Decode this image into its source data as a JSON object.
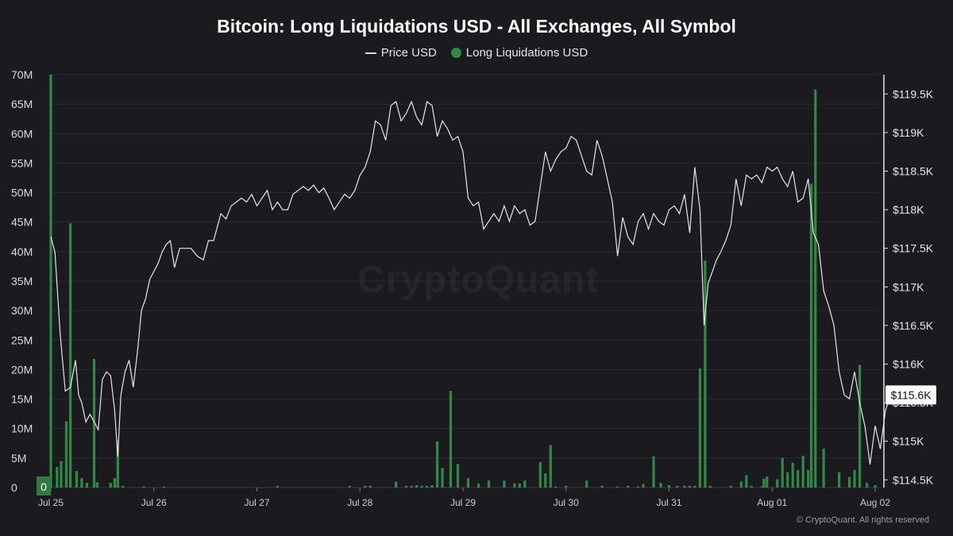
{
  "title": "Bitcoin: Long Liquidations USD - All Exchanges, All Symbol",
  "legend": {
    "price": "Price USD",
    "liquidations": "Long Liquidations USD"
  },
  "watermark": "CryptoQuant",
  "copyright": "© CryptoQuant. All rights reserved",
  "current_price_label": "$115.6K",
  "colors": {
    "background": "#1b1a1f",
    "bars": "#2e8b45",
    "price_line": "#e6e6e6",
    "grid": "#2c2b31"
  },
  "chart_data": {
    "type": "bar",
    "x_ticks": [
      "Jul 25",
      "Jul 26",
      "Jul 27",
      "Jul 28",
      "Jul 29",
      "Jul 30",
      "Jul 31",
      "Aug 01",
      "Aug 02"
    ],
    "left_axis": {
      "ticks": [
        "0",
        "5M",
        "10M",
        "15M",
        "20M",
        "25M",
        "30M",
        "35M",
        "40M",
        "45M",
        "50M",
        "55M",
        "60M",
        "65M",
        "70M"
      ],
      "ylim": [
        0,
        70
      ]
    },
    "right_axis": {
      "ticks": [
        "$114.5K",
        "$115K",
        "$115.5K",
        "$116K",
        "$116.5K",
        "$117K",
        "$117.5K",
        "$118K",
        "$118.5K",
        "$119K",
        "$119.5K"
      ],
      "ylim": [
        114.4,
        119.75
      ]
    },
    "series": [
      {
        "name": "Long Liquidations USD",
        "kind": "bar",
        "unit": "M USD",
        "points": [
          [
            0.0,
            70
          ],
          [
            0.06,
            3.5
          ],
          [
            0.1,
            4.5
          ],
          [
            0.15,
            11.2
          ],
          [
            0.19,
            44.8
          ],
          [
            0.25,
            2.8
          ],
          [
            0.3,
            1.6
          ],
          [
            0.35,
            0.8
          ],
          [
            0.42,
            21.8
          ],
          [
            0.45,
            0.9
          ],
          [
            0.58,
            0.8
          ],
          [
            0.62,
            1.6
          ],
          [
            0.65,
            8.0
          ],
          [
            0.7,
            0.3
          ],
          [
            0.9,
            0.2
          ],
          [
            1.1,
            0.2
          ],
          [
            2.2,
            0.3
          ],
          [
            2.9,
            0.3
          ],
          [
            3.05,
            0.3
          ],
          [
            3.1,
            0.3
          ],
          [
            3.35,
            1.0
          ],
          [
            3.45,
            0.3
          ],
          [
            3.5,
            0.3
          ],
          [
            3.55,
            0.4
          ],
          [
            3.6,
            0.3
          ],
          [
            3.65,
            0.3
          ],
          [
            3.7,
            0.4
          ],
          [
            3.75,
            7.8
          ],
          [
            3.8,
            3.3
          ],
          [
            3.88,
            16.4
          ],
          [
            3.95,
            4.0
          ],
          [
            4.05,
            1.6
          ],
          [
            4.15,
            0.7
          ],
          [
            4.25,
            1.2
          ],
          [
            4.4,
            1.2
          ],
          [
            4.5,
            0.7
          ],
          [
            4.55,
            0.7
          ],
          [
            4.6,
            1.2
          ],
          [
            4.75,
            4.3
          ],
          [
            4.8,
            2.4
          ],
          [
            4.85,
            7.2
          ],
          [
            4.9,
            0.2
          ],
          [
            5.0,
            0.3
          ],
          [
            5.2,
            1.2
          ],
          [
            5.35,
            0.3
          ],
          [
            5.5,
            0.2
          ],
          [
            5.6,
            0.3
          ],
          [
            5.7,
            0.2
          ],
          [
            5.75,
            0.6
          ],
          [
            5.85,
            5.3
          ],
          [
            5.92,
            0.8
          ],
          [
            6.0,
            0.4
          ],
          [
            6.08,
            0.3
          ],
          [
            6.15,
            0.3
          ],
          [
            6.2,
            0.3
          ],
          [
            6.25,
            0.3
          ],
          [
            6.3,
            20.2
          ],
          [
            6.35,
            38.5
          ],
          [
            6.4,
            0.3
          ],
          [
            6.6,
            0.3
          ],
          [
            6.7,
            1.0
          ],
          [
            6.75,
            2.1
          ],
          [
            6.8,
            0.3
          ],
          [
            6.9,
            0.2
          ],
          [
            6.92,
            1.5
          ],
          [
            6.95,
            1.9
          ],
          [
            7.05,
            1.4
          ],
          [
            7.1,
            5.0
          ],
          [
            7.15,
            2.6
          ],
          [
            7.2,
            4.2
          ],
          [
            7.25,
            3.0
          ],
          [
            7.3,
            5.4
          ],
          [
            7.35,
            3.0
          ],
          [
            7.38,
            51.5
          ],
          [
            7.42,
            67.5
          ],
          [
            7.5,
            6.6
          ],
          [
            7.65,
            2.6
          ],
          [
            7.75,
            1.8
          ],
          [
            7.8,
            3.0
          ],
          [
            7.85,
            20.8
          ],
          [
            7.92,
            0.8
          ],
          [
            8.0,
            0.4
          ]
        ]
      },
      {
        "name": "Price USD",
        "kind": "line",
        "unit": "K USD",
        "points": [
          [
            0.0,
            117.65
          ],
          [
            0.04,
            117.45
          ],
          [
            0.09,
            116.4
          ],
          [
            0.14,
            115.65
          ],
          [
            0.19,
            115.7
          ],
          [
            0.24,
            116.05
          ],
          [
            0.27,
            115.6
          ],
          [
            0.3,
            115.5
          ],
          [
            0.34,
            115.25
          ],
          [
            0.38,
            115.35
          ],
          [
            0.42,
            115.25
          ],
          [
            0.46,
            115.15
          ],
          [
            0.5,
            115.8
          ],
          [
            0.54,
            115.9
          ],
          [
            0.58,
            115.85
          ],
          [
            0.62,
            115.4
          ],
          [
            0.65,
            114.8
          ],
          [
            0.68,
            115.6
          ],
          [
            0.72,
            115.9
          ],
          [
            0.76,
            116.05
          ],
          [
            0.8,
            115.7
          ],
          [
            0.84,
            116.15
          ],
          [
            0.88,
            116.7
          ],
          [
            0.92,
            116.85
          ],
          [
            0.96,
            117.1
          ],
          [
            1.0,
            117.2
          ],
          [
            1.04,
            117.3
          ],
          [
            1.08,
            117.45
          ],
          [
            1.12,
            117.55
          ],
          [
            1.16,
            117.6
          ],
          [
            1.2,
            117.25
          ],
          [
            1.25,
            117.5
          ],
          [
            1.3,
            117.5
          ],
          [
            1.36,
            117.5
          ],
          [
            1.42,
            117.4
          ],
          [
            1.48,
            117.35
          ],
          [
            1.53,
            117.6
          ],
          [
            1.58,
            117.6
          ],
          [
            1.65,
            117.95
          ],
          [
            1.7,
            117.88
          ],
          [
            1.75,
            118.05
          ],
          [
            1.8,
            118.1
          ],
          [
            1.85,
            118.15
          ],
          [
            1.9,
            118.1
          ],
          [
            1.95,
            118.2
          ],
          [
            2.0,
            118.05
          ],
          [
            2.05,
            118.15
          ],
          [
            2.1,
            118.25
          ],
          [
            2.15,
            118.0
          ],
          [
            2.2,
            118.1
          ],
          [
            2.25,
            118.0
          ],
          [
            2.3,
            118.0
          ],
          [
            2.35,
            118.2
          ],
          [
            2.4,
            118.25
          ],
          [
            2.45,
            118.3
          ],
          [
            2.5,
            118.25
          ],
          [
            2.55,
            118.32
          ],
          [
            2.6,
            118.22
          ],
          [
            2.65,
            118.28
          ],
          [
            2.7,
            118.15
          ],
          [
            2.75,
            118.0
          ],
          [
            2.8,
            118.1
          ],
          [
            2.85,
            118.2
          ],
          [
            2.9,
            118.15
          ],
          [
            2.95,
            118.25
          ],
          [
            3.0,
            118.45
          ],
          [
            3.05,
            118.55
          ],
          [
            3.1,
            118.75
          ],
          [
            3.15,
            119.15
          ],
          [
            3.2,
            119.1
          ],
          [
            3.25,
            118.9
          ],
          [
            3.3,
            119.35
          ],
          [
            3.35,
            119.4
          ],
          [
            3.4,
            119.15
          ],
          [
            3.45,
            119.25
          ],
          [
            3.5,
            119.4
          ],
          [
            3.55,
            119.2
          ],
          [
            3.6,
            119.1
          ],
          [
            3.65,
            119.4
          ],
          [
            3.7,
            119.35
          ],
          [
            3.75,
            118.95
          ],
          [
            3.8,
            119.15
          ],
          [
            3.85,
            119.05
          ],
          [
            3.9,
            118.9
          ],
          [
            3.95,
            118.95
          ],
          [
            4.0,
            118.75
          ],
          [
            4.05,
            118.15
          ],
          [
            4.1,
            118.05
          ],
          [
            4.15,
            118.1
          ],
          [
            4.2,
            117.75
          ],
          [
            4.25,
            117.85
          ],
          [
            4.3,
            117.95
          ],
          [
            4.35,
            117.85
          ],
          [
            4.4,
            118.05
          ],
          [
            4.45,
            117.85
          ],
          [
            4.5,
            118.05
          ],
          [
            4.55,
            117.95
          ],
          [
            4.6,
            118.0
          ],
          [
            4.65,
            117.8
          ],
          [
            4.7,
            117.85
          ],
          [
            4.75,
            118.3
          ],
          [
            4.8,
            118.75
          ],
          [
            4.85,
            118.5
          ],
          [
            4.9,
            118.65
          ],
          [
            4.95,
            118.75
          ],
          [
            5.0,
            118.8
          ],
          [
            5.05,
            118.95
          ],
          [
            5.1,
            118.9
          ],
          [
            5.15,
            118.7
          ],
          [
            5.2,
            118.5
          ],
          [
            5.25,
            118.45
          ],
          [
            5.3,
            118.9
          ],
          [
            5.35,
            118.7
          ],
          [
            5.4,
            118.4
          ],
          [
            5.45,
            118.1
          ],
          [
            5.5,
            117.4
          ],
          [
            5.55,
            117.9
          ],
          [
            5.6,
            117.65
          ],
          [
            5.65,
            117.55
          ],
          [
            5.7,
            117.85
          ],
          [
            5.75,
            117.95
          ],
          [
            5.8,
            117.75
          ],
          [
            5.85,
            117.95
          ],
          [
            5.9,
            117.85
          ],
          [
            5.95,
            117.8
          ],
          [
            6.0,
            118.0
          ],
          [
            6.05,
            118.05
          ],
          [
            6.1,
            117.95
          ],
          [
            6.15,
            118.2
          ],
          [
            6.2,
            117.7
          ],
          [
            6.25,
            118.55
          ],
          [
            6.3,
            118.0
          ],
          [
            6.34,
            116.5
          ],
          [
            6.38,
            117.05
          ],
          [
            6.42,
            117.2
          ],
          [
            6.46,
            117.35
          ],
          [
            6.5,
            117.45
          ],
          [
            6.55,
            117.6
          ],
          [
            6.6,
            117.8
          ],
          [
            6.65,
            118.4
          ],
          [
            6.7,
            118.05
          ],
          [
            6.75,
            118.45
          ],
          [
            6.8,
            118.4
          ],
          [
            6.85,
            118.45
          ],
          [
            6.9,
            118.35
          ],
          [
            6.95,
            118.55
          ],
          [
            7.0,
            118.5
          ],
          [
            7.05,
            118.55
          ],
          [
            7.1,
            118.4
          ],
          [
            7.15,
            118.3
          ],
          [
            7.2,
            118.5
          ],
          [
            7.25,
            118.1
          ],
          [
            7.3,
            118.15
          ],
          [
            7.35,
            118.4
          ],
          [
            7.4,
            117.7
          ],
          [
            7.45,
            117.55
          ],
          [
            7.5,
            116.95
          ],
          [
            7.55,
            116.75
          ],
          [
            7.6,
            116.5
          ],
          [
            7.65,
            115.9
          ],
          [
            7.7,
            115.6
          ],
          [
            7.75,
            115.55
          ],
          [
            7.8,
            115.9
          ],
          [
            7.85,
            115.5
          ],
          [
            7.9,
            115.2
          ],
          [
            7.95,
            114.7
          ],
          [
            8.0,
            115.2
          ],
          [
            8.05,
            114.9
          ],
          [
            8.1,
            115.4
          ],
          [
            8.15,
            115.6
          ]
        ]
      }
    ]
  }
}
